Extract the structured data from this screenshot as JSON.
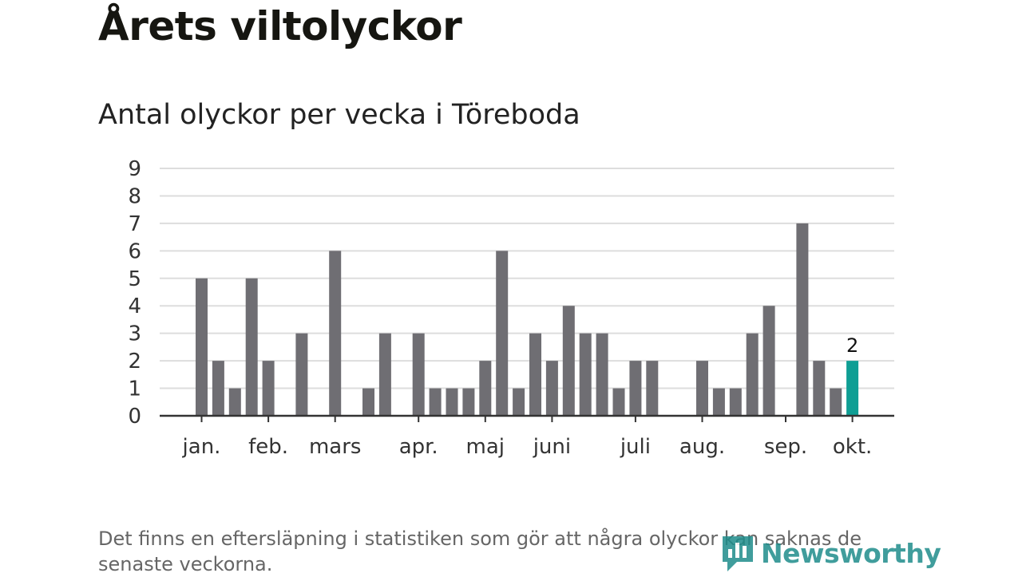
{
  "title": "Årets viltolyckor",
  "subtitle": "Antal olyckor per vecka i Töreboda",
  "footnote": "Det finns en eftersläpning i statistiken som gör att några olyckor kan saknas de senaste veckorna.",
  "logo": {
    "text": "Newsworthy",
    "icon": "newsworthy-logo-icon"
  },
  "colors": {
    "bar": "#6f6e73",
    "highlight": "#0f9e94",
    "grid": "#dddddd",
    "axis": "#333333",
    "text": "#333333"
  },
  "chart_data": {
    "type": "bar",
    "title": "",
    "xlabel": "",
    "ylabel": "",
    "ylim": [
      0,
      9
    ],
    "yticks": [
      0,
      1,
      2,
      3,
      4,
      5,
      6,
      7,
      8,
      9
    ],
    "grid": true,
    "month_labels": [
      {
        "label": "jan.",
        "week": 1
      },
      {
        "label": "feb.",
        "week": 5
      },
      {
        "label": "mars",
        "week": 9
      },
      {
        "label": "apr.",
        "week": 14
      },
      {
        "label": "maj",
        "week": 18
      },
      {
        "label": "juni",
        "week": 22
      },
      {
        "label": "juli",
        "week": 27
      },
      {
        "label": "aug.",
        "week": 31
      },
      {
        "label": "sep.",
        "week": 36
      },
      {
        "label": "okt.",
        "week": 40
      }
    ],
    "weeks": [
      1,
      2,
      3,
      4,
      5,
      6,
      7,
      8,
      9,
      10,
      11,
      12,
      13,
      14,
      15,
      16,
      17,
      18,
      19,
      20,
      21,
      22,
      23,
      24,
      25,
      26,
      27,
      28,
      29,
      30,
      31,
      32,
      33,
      34,
      35,
      36,
      37,
      38,
      39,
      40
    ],
    "values": [
      5,
      2,
      1,
      5,
      2,
      0,
      3,
      0,
      6,
      0,
      1,
      3,
      0,
      3,
      1,
      1,
      1,
      2,
      6,
      1,
      3,
      2,
      4,
      3,
      3,
      1,
      2,
      2,
      0,
      0,
      2,
      1,
      1,
      3,
      4,
      0,
      7,
      2,
      1,
      2
    ],
    "highlight_week": 40,
    "highlight_label": "2"
  }
}
